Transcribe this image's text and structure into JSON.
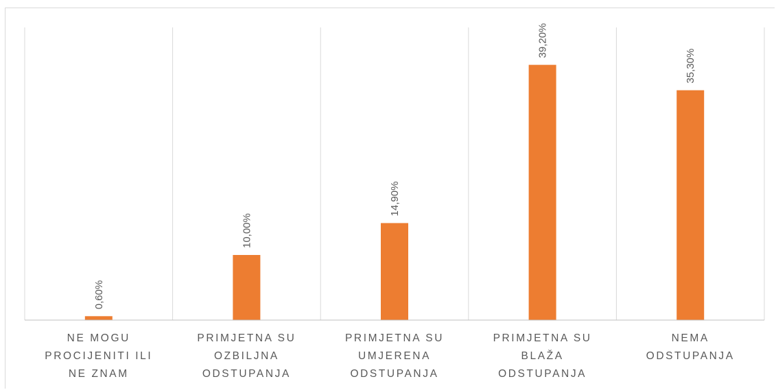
{
  "chart_data": {
    "type": "bar",
    "categories": [
      [
        "NE MOGU",
        "PROCIJENITI ILI",
        "NE ZNAM"
      ],
      [
        "PRIMJETNA SU",
        "OZBILJNA",
        "ODSTUPANJA"
      ],
      [
        "PRIMJETNA SU",
        "UMJERENA",
        "ODSTUPANJA"
      ],
      [
        "PRIMJETNA SU",
        "BLAŽA",
        "ODSTUPANJA"
      ],
      [
        "NEMA",
        "ODSTUPANJA"
      ]
    ],
    "values": [
      0.6,
      10.0,
      14.9,
      39.2,
      35.3
    ],
    "data_labels": [
      "0,60%",
      "10,00%",
      "14,90%",
      "39,20%",
      "35,30%"
    ],
    "ylim": [
      0,
      45
    ],
    "title": "",
    "xlabel": "",
    "ylabel": "",
    "grid": "vertical category separators",
    "legend": "none",
    "colors": {
      "bar": "#ED7D31",
      "grid": "#d9d9d9",
      "axis": "#bfbfbf",
      "text": "#595959"
    }
  }
}
